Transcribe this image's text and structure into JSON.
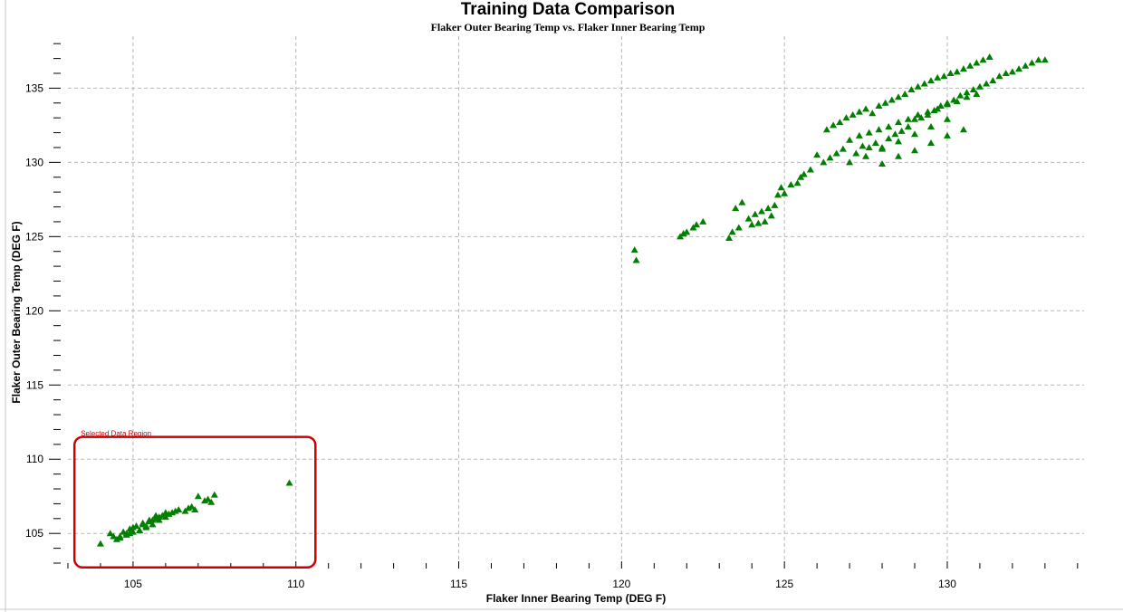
{
  "chart_data": {
    "type": "scatter",
    "title": "Training Data Comparison",
    "subtitle": "Flaker Outer Bearing Temp vs. Flaker Inner Bearing Temp",
    "xlabel": "Flaker Inner Bearing Temp (DEG F)",
    "ylabel": "Flaker Outer Bearing Temp (DEG F)",
    "xlim": [
      103,
      134.2
    ],
    "ylim": [
      103,
      138.5
    ],
    "x_ticks": [
      105,
      110,
      115,
      120,
      125,
      130
    ],
    "y_ticks": [
      105,
      110,
      115,
      120,
      125,
      130,
      135
    ],
    "grid": true,
    "marker": "triangle",
    "marker_color": "#008000",
    "selection": {
      "label": "Selected Data Region",
      "x_range": [
        103.2,
        110.6
      ],
      "y_range": [
        103.2,
        111.5
      ],
      "color": "#d10000"
    },
    "series": [
      {
        "x": [
          104.0,
          104.3,
          104.5,
          104.6,
          104.7,
          104.8,
          104.9,
          105.0,
          105.1,
          105.2,
          105.3,
          105.4,
          105.5,
          105.6,
          105.7,
          105.8,
          105.9,
          106.0,
          106.1,
          106.2,
          106.4,
          106.6,
          106.8,
          106.9,
          107.0,
          107.3,
          107.4,
          107.5,
          104.6,
          104.9,
          105.2,
          105.4,
          105.6,
          105.8,
          106.0,
          109.8,
          104.4,
          104.8,
          105.0,
          105.3,
          105.5,
          105.7,
          106.3,
          106.7,
          107.2
        ],
        "y": [
          104.3,
          105.0,
          104.6,
          104.8,
          105.1,
          104.9,
          105.3,
          105.1,
          105.5,
          105.2,
          105.6,
          105.4,
          105.8,
          105.6,
          106.0,
          105.9,
          106.2,
          106.1,
          106.3,
          106.4,
          106.6,
          106.5,
          106.8,
          106.6,
          107.5,
          107.3,
          107.1,
          107.6,
          104.7,
          105.0,
          105.2,
          105.5,
          105.9,
          106.1,
          106.4,
          108.4,
          104.8,
          105.0,
          105.4,
          105.7,
          105.9,
          106.2,
          106.5,
          106.7,
          107.2
        ]
      },
      {
        "x": [
          120.4,
          120.45,
          121.8,
          121.9,
          122.0,
          122.2,
          122.3,
          122.5,
          123.3,
          123.4,
          123.5,
          123.6,
          123.7,
          123.9,
          124.0,
          124.1,
          124.2,
          124.3,
          124.4,
          124.5,
          124.6,
          124.7,
          124.8,
          124.9,
          125.0,
          125.2,
          125.4,
          125.5,
          125.6,
          125.8,
          126.0,
          126.2,
          126.4,
          126.6,
          126.8,
          127.0,
          127.2,
          127.4,
          127.6,
          127.8,
          128.0,
          128.2,
          128.4,
          128.6,
          128.8,
          129.0,
          129.2,
          129.4,
          129.6,
          129.8,
          130.0,
          130.2,
          130.4,
          130.6,
          130.8,
          131.0,
          131.2,
          131.4,
          131.6,
          131.8,
          132.0,
          132.2,
          132.4,
          132.6,
          132.8,
          133.0,
          126.3,
          126.5,
          126.7,
          126.9,
          127.1,
          127.3,
          127.5,
          127.7,
          127.9,
          128.1,
          128.3,
          128.5,
          128.7,
          128.9,
          129.1,
          129.3,
          129.5,
          129.7,
          129.9,
          130.1,
          130.3,
          130.5,
          130.7,
          130.9,
          131.1,
          131.3,
          127.0,
          127.3,
          127.6,
          127.9,
          128.2,
          128.5,
          128.8,
          129.1,
          129.4,
          129.7,
          130.0,
          130.3,
          130.6,
          130.9,
          127.5,
          128.0,
          128.5,
          129.0,
          129.5,
          130.0,
          128.0,
          128.5,
          129.0,
          129.5,
          130.0,
          130.5
        ],
        "y": [
          124.1,
          123.4,
          125.0,
          125.2,
          125.3,
          125.6,
          125.8,
          126.0,
          124.9,
          125.3,
          126.9,
          125.6,
          127.3,
          126.2,
          125.8,
          126.5,
          125.9,
          126.7,
          126.0,
          126.9,
          126.4,
          127.1,
          127.8,
          128.3,
          127.9,
          128.5,
          128.6,
          129.0,
          129.2,
          129.5,
          130.5,
          130.0,
          130.3,
          130.6,
          130.9,
          130.0,
          130.6,
          131.1,
          131.0,
          131.3,
          131.0,
          131.6,
          131.9,
          132.1,
          132.4,
          132.9,
          133.0,
          133.2,
          133.5,
          133.8,
          134.0,
          134.2,
          134.5,
          134.7,
          134.9,
          135.1,
          135.3,
          135.5,
          135.8,
          136.0,
          136.1,
          136.3,
          136.5,
          136.7,
          136.9,
          136.9,
          132.2,
          132.5,
          132.7,
          133.0,
          133.2,
          133.4,
          133.6,
          133.3,
          133.8,
          134.0,
          134.2,
          134.4,
          134.6,
          134.9,
          135.1,
          135.3,
          135.5,
          135.7,
          135.8,
          136.0,
          136.1,
          136.3,
          136.5,
          136.7,
          136.9,
          137.1,
          131.5,
          131.8,
          132.0,
          132.2,
          132.4,
          132.7,
          132.9,
          133.2,
          133.4,
          133.6,
          133.9,
          134.1,
          134.4,
          134.6,
          130.4,
          130.9,
          131.4,
          131.9,
          132.4,
          132.9,
          129.9,
          130.4,
          130.8,
          131.3,
          131.8,
          132.2
        ]
      }
    ]
  }
}
